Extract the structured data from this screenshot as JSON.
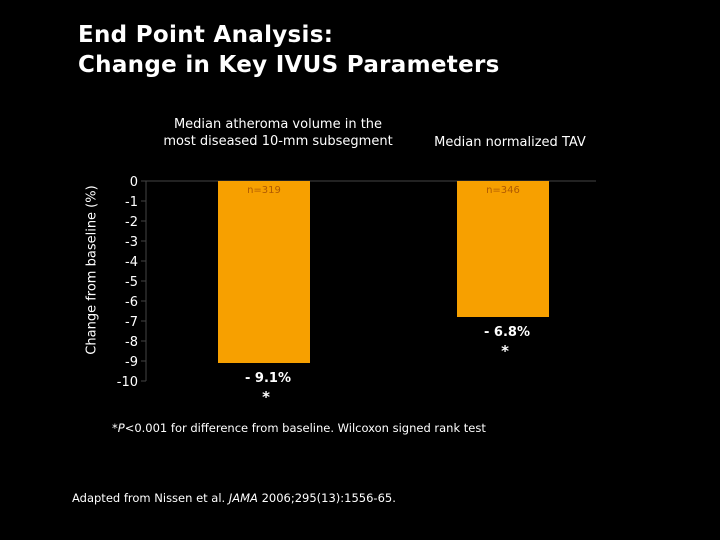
{
  "title": {
    "line1": "End Point Analysis:",
    "line2": "Change in Key IVUS Parameters"
  },
  "colors": {
    "bar": "#f7a000",
    "background": "#000000",
    "text": "#ffffff",
    "n_label": "#b05a00"
  },
  "chart_data": {
    "type": "bar",
    "categories": [
      "Median atheroma volume in the most diseased 10-mm subsegment",
      "Median normalized TAV"
    ],
    "values": [
      -9.1,
      -6.8
    ],
    "value_labels": [
      "- 9.1%",
      "- 6.8%"
    ],
    "significance": [
      "*",
      "*"
    ],
    "n_labels": [
      "n=319",
      "n=346"
    ],
    "ylabel": "Change from baseline (%)",
    "ylim": [
      -10,
      0
    ],
    "yticks": [
      "0",
      "-1",
      "-2",
      "-3",
      "-4",
      "-5",
      "-6",
      "-7",
      "-8",
      "-9",
      "-10"
    ]
  },
  "footnote": {
    "star": "*",
    "p": "P",
    "text": "<0.001 for difference from baseline. Wilcoxon signed rank test"
  },
  "source": {
    "pre": "Adapted from Nissen et al. ",
    "journal": "JAMA",
    "post": " 2006;295(13):1556-65."
  }
}
